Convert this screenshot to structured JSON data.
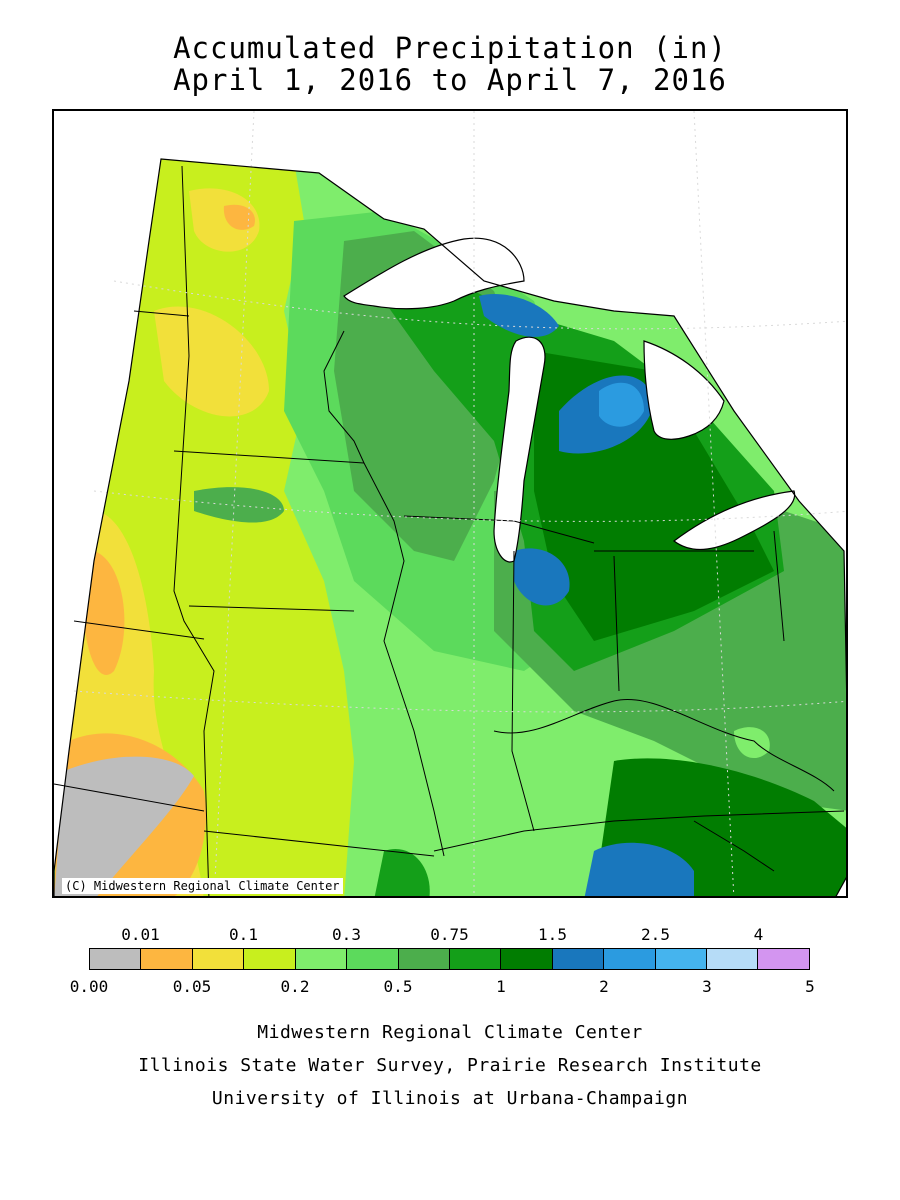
{
  "title": {
    "line1": "Accumulated Precipitation (in)",
    "line2": "April 1, 2016 to April 7, 2016"
  },
  "map": {
    "copyright": "(C) Midwestern Regional Climate Center",
    "water_color": "#ffffff",
    "border_color": "#000000"
  },
  "legend": {
    "top_labels": [
      "0.01",
      "0.1",
      "0.3",
      "0.75",
      "1.5",
      "2.5",
      "4"
    ],
    "bottom_labels": [
      "0.00",
      "0.05",
      "0.2",
      "0.5",
      "1",
      "2",
      "3",
      "5"
    ],
    "colors": [
      "#bdbdbd",
      "#fdb640",
      "#f2e03a",
      "#c8ef1e",
      "#7fed6c",
      "#5cda5c",
      "#4cae4c",
      "#149f19",
      "#017d01",
      "#1977bd",
      "#2b9be0",
      "#45b4ee",
      "#b6dcf7",
      "#d395f0"
    ]
  },
  "credits": {
    "line1": "Midwestern Regional Climate Center",
    "line2": "Illinois State Water Survey, Prairie Research Institute",
    "line3": "University of Illinois at Urbana-Champaign"
  }
}
